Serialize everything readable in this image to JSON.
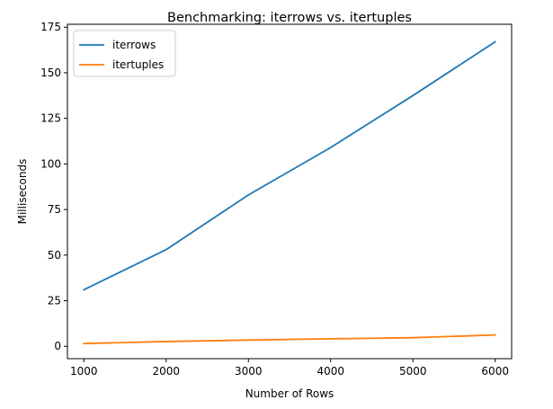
{
  "chart_data": {
    "type": "line",
    "title": "Benchmarking: iterrows vs. itertuples",
    "xlabel": "Number of Rows",
    "ylabel": "Milliseconds",
    "x": [
      1000,
      2000,
      3000,
      4000,
      5000,
      6000
    ],
    "xticks": [
      1000,
      2000,
      3000,
      4000,
      5000,
      6000
    ],
    "yticks": [
      0,
      25,
      50,
      75,
      100,
      125,
      150,
      175
    ],
    "xlim": [
      800,
      6200
    ],
    "ylim": [
      -6.8,
      176.6
    ],
    "grid": false,
    "legend_position": "top-left",
    "series": [
      {
        "name": "iterrows",
        "color": "#1f77b4",
        "values": [
          31,
          53,
          83,
          109,
          137.5,
          167
        ]
      },
      {
        "name": "itertuples",
        "color": "#ff7f0e",
        "values": [
          1.5,
          2.6,
          3.4,
          4.1,
          4.7,
          6.2
        ]
      }
    ]
  }
}
